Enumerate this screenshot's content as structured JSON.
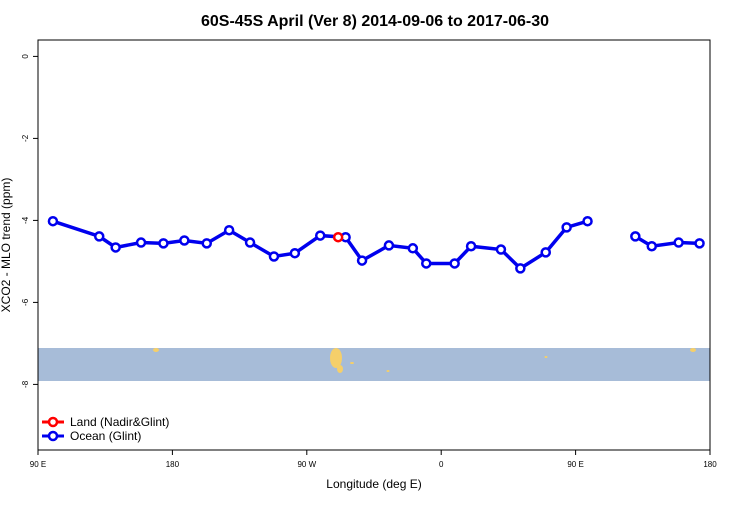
{
  "chart_data": {
    "type": "line",
    "title": "60S-45S April (Ver 8)   2014-09-06 to 2017-06-30",
    "x_label": "Longitude (deg E)",
    "y_label": "XCO2 - MLO trend (ppm)",
    "xlim": [
      90,
      540
    ],
    "xticks": [
      {
        "value": 90,
        "label": "90 E"
      },
      {
        "value": 180,
        "label": "180"
      },
      {
        "value": 270,
        "label": "90 W"
      },
      {
        "value": 360,
        "label": "0"
      },
      {
        "value": 450,
        "label": "90 E"
      },
      {
        "value": 540,
        "label": "180"
      }
    ],
    "ylim": [
      -9.6,
      0.4
    ],
    "yticks": [
      0,
      -2,
      -4,
      -6,
      -8
    ],
    "legend": "bottom-left",
    "series": [
      {
        "name": "Land (Nadir&Glint)",
        "color": "#ff0000",
        "x": [
          291
        ],
        "values": [
          -4.41
        ]
      },
      {
        "name": "Ocean (Glint)",
        "color": "#0000ee",
        "x": [
          100,
          131,
          142,
          159,
          174,
          188,
          203,
          218,
          232,
          248,
          262,
          279,
          296,
          307,
          325,
          341,
          350,
          369,
          380,
          400,
          413,
          430,
          444,
          458,
          475,
          490,
          501,
          519,
          533
        ],
        "values": [
          -4.02,
          -4.39,
          -4.66,
          -4.54,
          -4.56,
          -4.49,
          -4.56,
          -4.24,
          -4.54,
          -4.88,
          -4.8,
          -4.37,
          -4.41,
          -4.98,
          -4.61,
          -4.68,
          -5.05,
          -5.05,
          -4.63,
          -4.71,
          -5.17,
          -4.78,
          -4.17,
          -4.02,
          null,
          -4.39,
          -4.63,
          -4.54,
          -4.56
        ]
      }
    ]
  }
}
